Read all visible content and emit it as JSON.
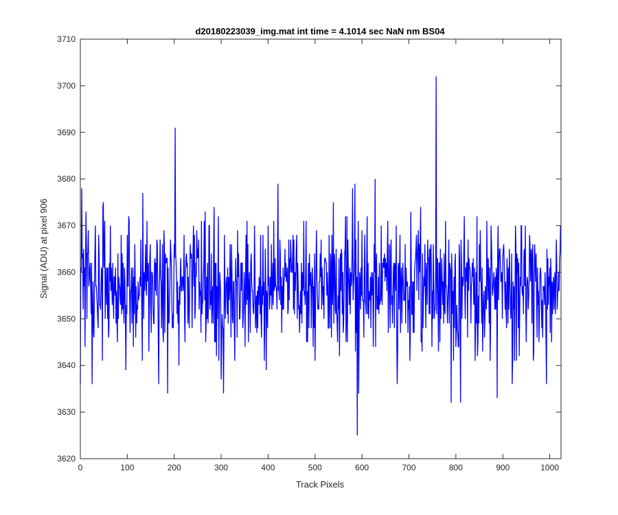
{
  "chart_data": {
    "type": "line",
    "title": "d20180223039_img.mat int time = 4.1014 sec  NaN nm BS04",
    "xlabel": "Track Pixels",
    "ylabel": "Signal (ADU) at pixel 906",
    "xlim": [
      0,
      1024
    ],
    "ylim": [
      3620,
      3710
    ],
    "xticks": [
      0,
      100,
      200,
      300,
      400,
      500,
      600,
      700,
      800,
      900,
      1000
    ],
    "yticks": [
      3620,
      3630,
      3640,
      3650,
      3660,
      3670,
      3680,
      3690,
      3700,
      3710
    ],
    "grid": false,
    "legend": "none",
    "line_color": "#0000ff",
    "signal_mean": 3657,
    "signal_min": 3625,
    "signal_max": 3702,
    "peaks": [
      {
        "x": 0,
        "y": 3636
      },
      {
        "x": 3,
        "y": 3678
      },
      {
        "x": 6,
        "y": 3652
      },
      {
        "x": 12,
        "y": 3673
      },
      {
        "x": 25,
        "y": 3636
      },
      {
        "x": 47,
        "y": 3641
      },
      {
        "x": 49,
        "y": 3675
      },
      {
        "x": 97,
        "y": 3639
      },
      {
        "x": 133,
        "y": 3677
      },
      {
        "x": 167,
        "y": 3636
      },
      {
        "x": 186,
        "y": 3634
      },
      {
        "x": 202,
        "y": 3691
      },
      {
        "x": 210,
        "y": 3640
      },
      {
        "x": 300,
        "y": 3637
      },
      {
        "x": 305,
        "y": 3634
      },
      {
        "x": 396,
        "y": 3639
      },
      {
        "x": 421,
        "y": 3679
      },
      {
        "x": 580,
        "y": 3678
      },
      {
        "x": 585,
        "y": 3679
      },
      {
        "x": 590,
        "y": 3625
      },
      {
        "x": 593,
        "y": 3634
      },
      {
        "x": 628,
        "y": 3680
      },
      {
        "x": 675,
        "y": 3636
      },
      {
        "x": 758,
        "y": 3702
      },
      {
        "x": 790,
        "y": 3632
      },
      {
        "x": 810,
        "y": 3632
      },
      {
        "x": 888,
        "y": 3633
      },
      {
        "x": 920,
        "y": 3636
      },
      {
        "x": 993,
        "y": 3636
      },
      {
        "x": 1022,
        "y": 3664
      }
    ]
  }
}
